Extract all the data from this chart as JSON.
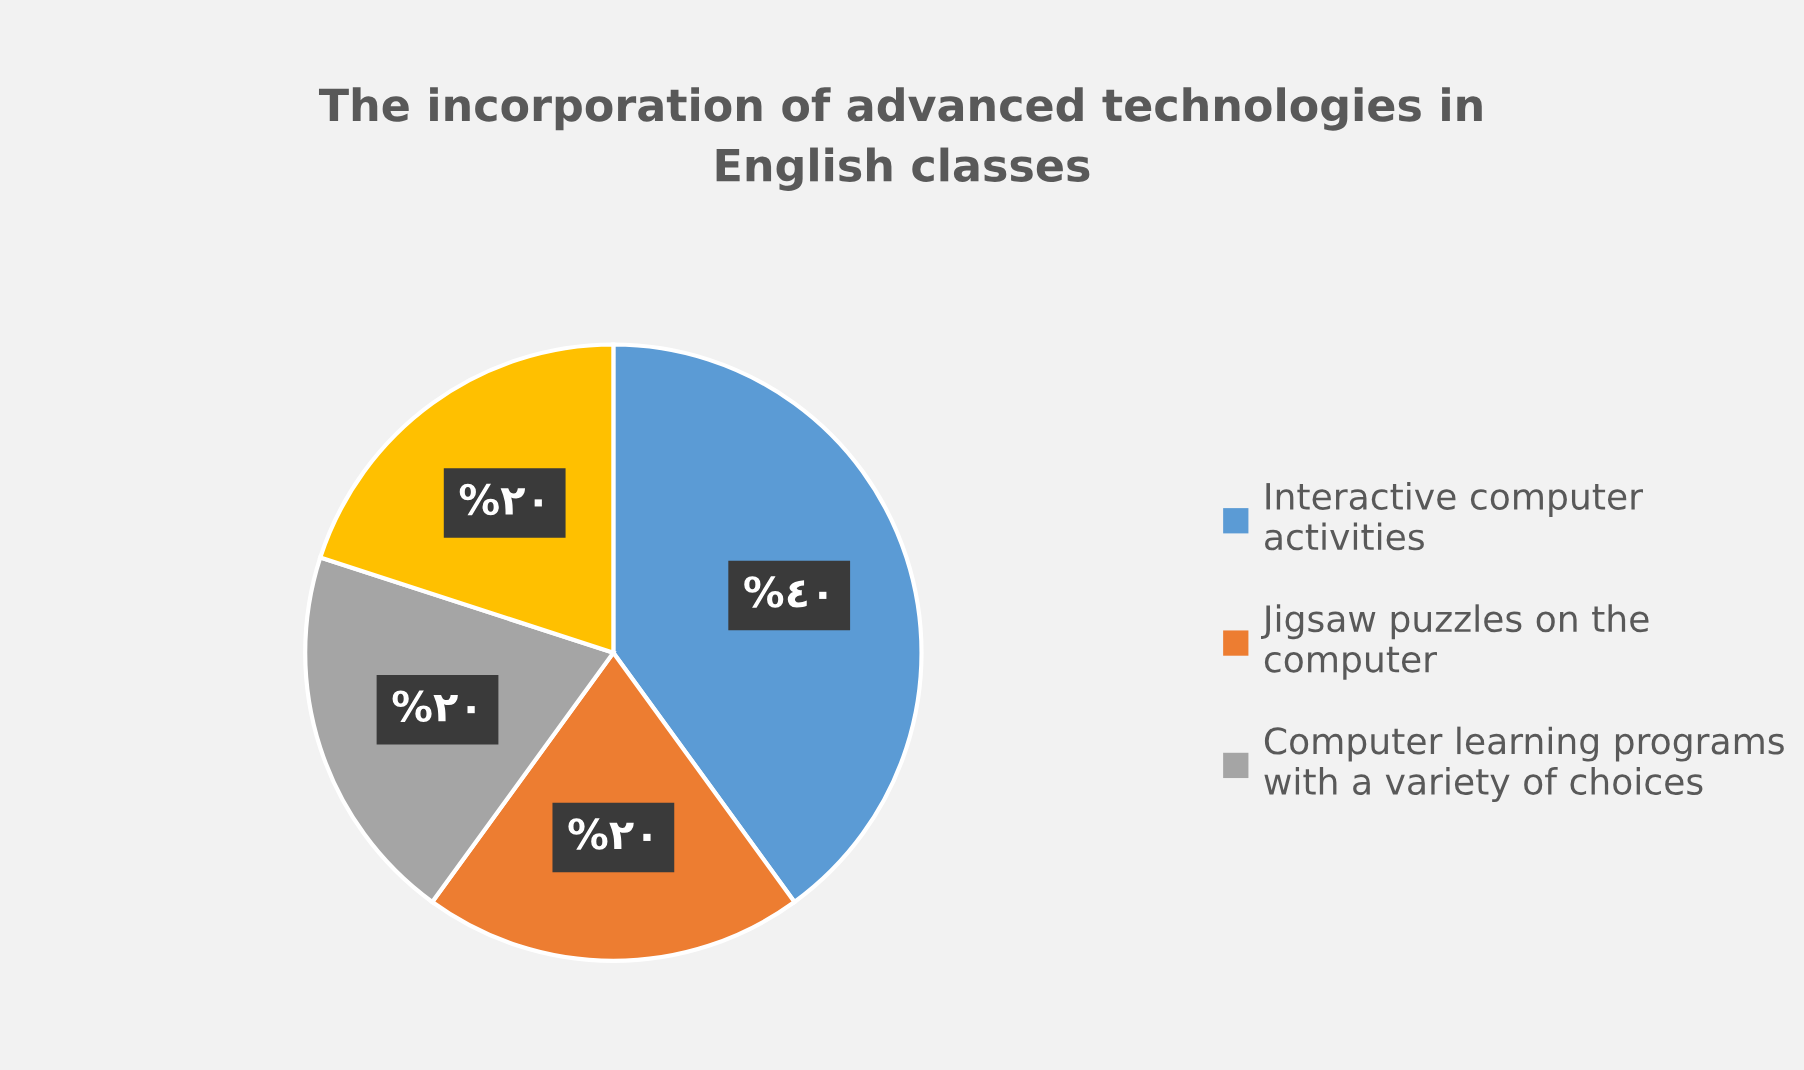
{
  "chart_data": {
    "type": "pie",
    "title": "The incorporation of advanced technologies in English classes",
    "categories": [
      "Interactive computer activities",
      "Jigsaw puzzles on the computer",
      "Computer learning programs with a variety of choices",
      null
    ],
    "values": [
      40,
      20,
      20,
      20
    ],
    "colors": [
      "#5b9bd5",
      "#ed7d31",
      "#a5a5a5",
      "#ffc000"
    ],
    "value_labels": [
      "%٤٠",
      "%٢٠",
      "%٢٠",
      "%٢٠"
    ],
    "legend": "right"
  }
}
